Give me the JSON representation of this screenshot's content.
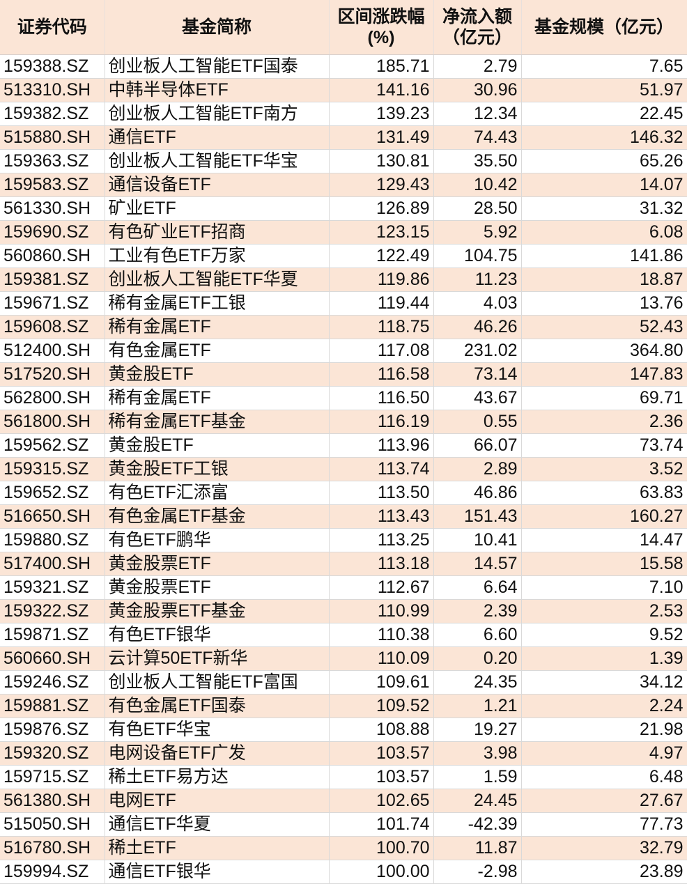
{
  "header": {
    "code": "证券代码",
    "name": "基金简称",
    "change_line1": "区间涨跌幅",
    "change_line2": "(%)",
    "flow_line1": "净流入额",
    "flow_line2": "（亿元）",
    "scale": "基金规模（亿元）"
  },
  "colors": {
    "header_bg": "#fbe5d6",
    "alt_row_bg": "#fbe5d6"
  },
  "rows": [
    [
      "159388.SZ",
      "创业板人工智能ETF国泰",
      "185.71",
      "2.79",
      "7.65"
    ],
    [
      "513310.SH",
      "中韩半导体ETF",
      "141.16",
      "30.96",
      "51.97"
    ],
    [
      "159382.SZ",
      "创业板人工智能ETF南方",
      "139.23",
      "12.34",
      "22.45"
    ],
    [
      "515880.SH",
      "通信ETF",
      "131.49",
      "74.43",
      "146.32"
    ],
    [
      "159363.SZ",
      "创业板人工智能ETF华宝",
      "130.81",
      "35.50",
      "65.26"
    ],
    [
      "159583.SZ",
      "通信设备ETF",
      "129.43",
      "10.42",
      "14.07"
    ],
    [
      "561330.SH",
      "矿业ETF",
      "126.89",
      "28.50",
      "31.32"
    ],
    [
      "159690.SZ",
      "有色矿业ETF招商",
      "123.15",
      "5.92",
      "6.08"
    ],
    [
      "560860.SH",
      "工业有色ETF万家",
      "122.49",
      "104.75",
      "141.86"
    ],
    [
      "159381.SZ",
      "创业板人工智能ETF华夏",
      "119.86",
      "11.23",
      "18.87"
    ],
    [
      "159671.SZ",
      "稀有金属ETF工银",
      "119.44",
      "4.03",
      "13.76"
    ],
    [
      "159608.SZ",
      "稀有金属ETF",
      "118.75",
      "46.26",
      "52.43"
    ],
    [
      "512400.SH",
      "有色金属ETF",
      "117.08",
      "231.02",
      "364.80"
    ],
    [
      "517520.SH",
      "黄金股ETF",
      "116.58",
      "73.14",
      "147.83"
    ],
    [
      "562800.SH",
      "稀有金属ETF",
      "116.50",
      "43.67",
      "69.71"
    ],
    [
      "561800.SH",
      "稀有金属ETF基金",
      "116.19",
      "0.55",
      "2.36"
    ],
    [
      "159562.SZ",
      "黄金股ETF",
      "113.96",
      "66.07",
      "73.74"
    ],
    [
      "159315.SZ",
      "黄金股ETF工银",
      "113.74",
      "2.89",
      "3.52"
    ],
    [
      "159652.SZ",
      "有色ETF汇添富",
      "113.50",
      "46.86",
      "63.83"
    ],
    [
      "516650.SH",
      "有色金属ETF基金",
      "113.43",
      "151.43",
      "160.27"
    ],
    [
      "159880.SZ",
      "有色ETF鹏华",
      "113.25",
      "10.41",
      "14.47"
    ],
    [
      "517400.SH",
      "黄金股票ETF",
      "113.18",
      "14.57",
      "15.58"
    ],
    [
      "159321.SZ",
      "黄金股票ETF",
      "112.67",
      "6.64",
      "7.10"
    ],
    [
      "159322.SZ",
      "黄金股票ETF基金",
      "110.99",
      "2.39",
      "2.53"
    ],
    [
      "159871.SZ",
      "有色ETF银华",
      "110.38",
      "6.60",
      "9.52"
    ],
    [
      "560660.SH",
      "云计算50ETF新华",
      "110.09",
      "0.20",
      "1.39"
    ],
    [
      "159246.SZ",
      "创业板人工智能ETF富国",
      "109.61",
      "24.35",
      "34.12"
    ],
    [
      "159881.SZ",
      "有色金属ETF国泰",
      "109.52",
      "1.21",
      "2.24"
    ],
    [
      "159876.SZ",
      "有色ETF华宝",
      "108.88",
      "19.27",
      "21.98"
    ],
    [
      "159320.SZ",
      "电网设备ETF广发",
      "103.57",
      "3.98",
      "4.97"
    ],
    [
      "159715.SZ",
      "稀土ETF易方达",
      "103.57",
      "1.59",
      "6.48"
    ],
    [
      "561380.SH",
      "电网ETF",
      "102.65",
      "24.45",
      "27.67"
    ],
    [
      "515050.SH",
      "通信ETF华夏",
      "101.74",
      "-42.39",
      "77.73"
    ],
    [
      "516780.SH",
      "稀土ETF",
      "100.70",
      "11.87",
      "32.79"
    ],
    [
      "159994.SZ",
      "通信ETF银华",
      "100.00",
      "-2.98",
      "23.89"
    ]
  ]
}
